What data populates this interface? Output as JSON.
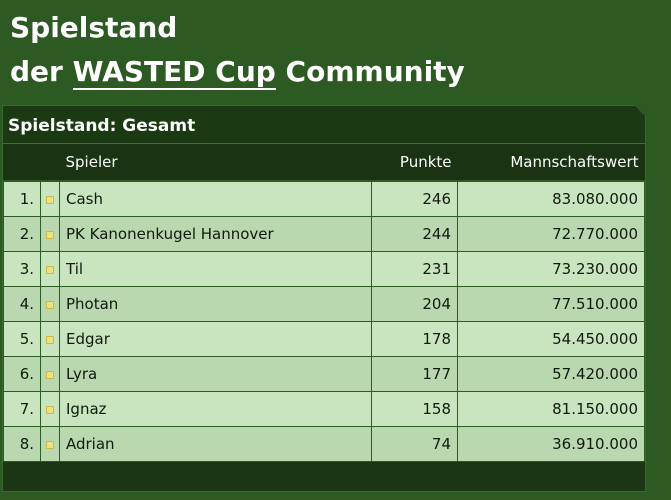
{
  "header": {
    "line1": "Spielstand",
    "line2_prefix": "der ",
    "line2_link": "WASTED Cup",
    "line2_suffix": " Community"
  },
  "panel": {
    "title": "Spielstand: Gesamt"
  },
  "table": {
    "columns": [
      "",
      "",
      "Spieler",
      "Punkte",
      "Mannschaftswert"
    ],
    "rows": [
      {
        "rank": "1.",
        "name": "Cash",
        "points": "246",
        "value": "83.080.000"
      },
      {
        "rank": "2.",
        "name": "PK Kanonenkugel Hannover",
        "points": "244",
        "value": "72.770.000"
      },
      {
        "rank": "3.",
        "name": "Til",
        "points": "231",
        "value": "73.230.000"
      },
      {
        "rank": "4.",
        "name": "Photan",
        "points": "204",
        "value": "77.510.000"
      },
      {
        "rank": "5.",
        "name": "Edgar",
        "points": "178",
        "value": "54.450.000"
      },
      {
        "rank": "6.",
        "name": "Lyra",
        "points": "177",
        "value": "57.420.000"
      },
      {
        "rank": "7.",
        "name": "Ignaz",
        "points": "158",
        "value": "81.150.000"
      },
      {
        "rank": "8.",
        "name": "Adrian",
        "points": "74",
        "value": "36.910.000"
      }
    ]
  },
  "colors": {
    "background": "#2d5a22",
    "panel": "#1a3312",
    "row_odd": "#c9e5c0",
    "row_even": "#bad8b0"
  }
}
